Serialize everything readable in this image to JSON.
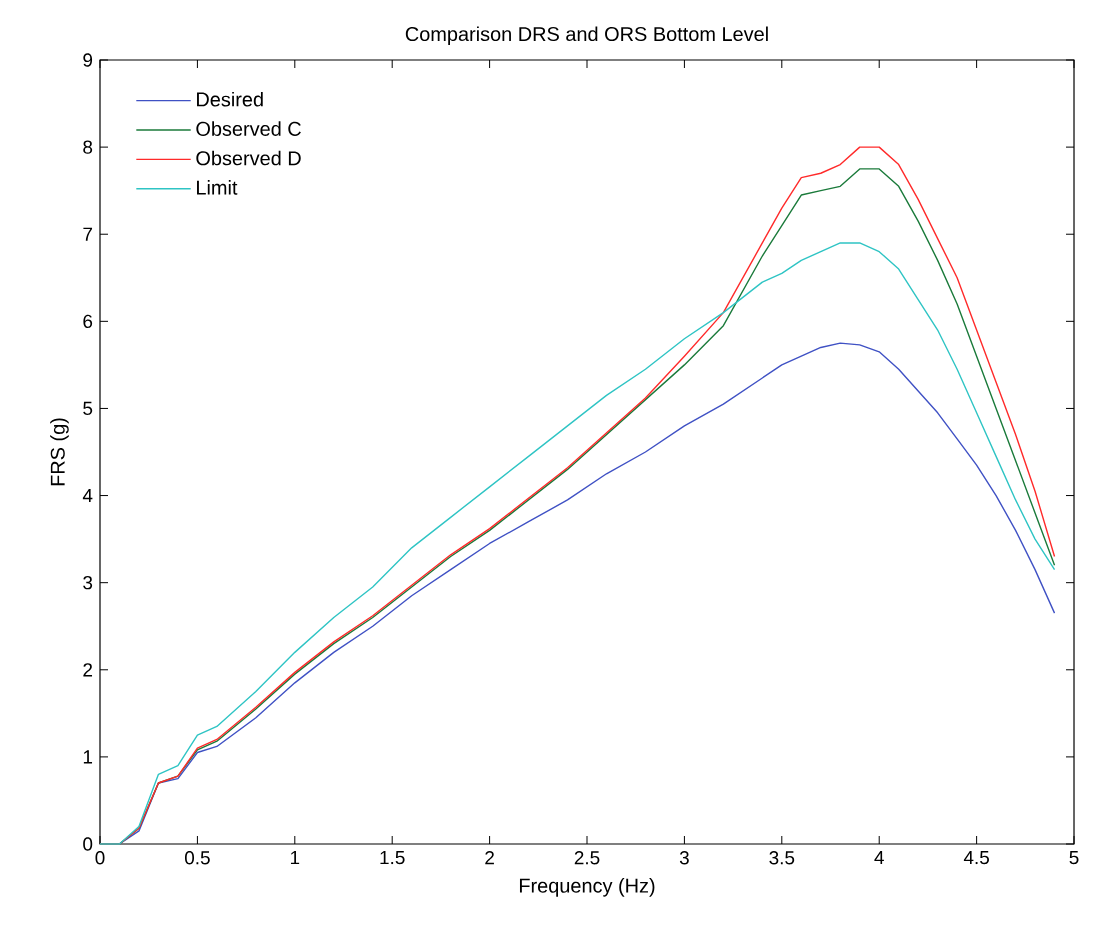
{
  "chart_data": {
    "type": "line",
    "title": "Comparison DRS and ORS Bottom Level",
    "xlabel": "Frequency (Hz)",
    "ylabel": "FRS (g)",
    "x": [
      0,
      0.1,
      0.2,
      0.3,
      0.4,
      0.5,
      0.6,
      0.8,
      1.0,
      1.2,
      1.4,
      1.6,
      1.8,
      2.0,
      2.2,
      2.4,
      2.6,
      2.8,
      3.0,
      3.2,
      3.4,
      3.5,
      3.6,
      3.7,
      3.8,
      3.9,
      4.0,
      4.1,
      4.2,
      4.3,
      4.4,
      4.5,
      4.6,
      4.7,
      4.8,
      4.9
    ],
    "series": [
      {
        "name": "Desired",
        "color": "#3f51c4",
        "values": [
          0,
          0,
          0.15,
          0.7,
          0.75,
          1.05,
          1.12,
          1.45,
          1.85,
          2.2,
          2.5,
          2.85,
          3.15,
          3.45,
          3.7,
          3.95,
          4.25,
          4.5,
          4.8,
          5.05,
          5.35,
          5.5,
          5.6,
          5.7,
          5.75,
          5.73,
          5.65,
          5.45,
          5.2,
          4.95,
          4.65,
          4.35,
          4.0,
          3.6,
          3.15,
          2.65
        ]
      },
      {
        "name": "Observed C",
        "color": "#1a7a3a",
        "values": [
          0,
          0,
          0.18,
          0.7,
          0.78,
          1.08,
          1.18,
          1.55,
          1.95,
          2.3,
          2.6,
          2.95,
          3.3,
          3.6,
          3.95,
          4.3,
          4.7,
          5.1,
          5.5,
          5.95,
          6.75,
          7.1,
          7.45,
          7.5,
          7.55,
          7.75,
          7.75,
          7.55,
          7.15,
          6.7,
          6.2,
          5.6,
          5.0,
          4.4,
          3.8,
          3.2
        ]
      },
      {
        "name": "Observed D",
        "color": "#ff2a2a",
        "values": [
          0,
          0,
          0.18,
          0.7,
          0.78,
          1.1,
          1.2,
          1.57,
          1.97,
          2.32,
          2.62,
          2.97,
          3.32,
          3.62,
          3.97,
          4.32,
          4.72,
          5.12,
          5.6,
          6.1,
          6.9,
          7.3,
          7.65,
          7.7,
          7.8,
          8.0,
          8.0,
          7.8,
          7.4,
          6.95,
          6.5,
          5.9,
          5.3,
          4.7,
          4.05,
          3.3
        ]
      },
      {
        "name": "Limit",
        "color": "#2ec4c4",
        "values": [
          0,
          0,
          0.2,
          0.8,
          0.9,
          1.25,
          1.35,
          1.75,
          2.2,
          2.6,
          2.95,
          3.4,
          3.75,
          4.1,
          4.45,
          4.8,
          5.15,
          5.45,
          5.8,
          6.1,
          6.45,
          6.55,
          6.7,
          6.8,
          6.9,
          6.9,
          6.8,
          6.6,
          6.25,
          5.9,
          5.45,
          4.95,
          4.45,
          3.95,
          3.5,
          3.15
        ]
      }
    ],
    "xlim": [
      0,
      5
    ],
    "ylim": [
      0,
      9
    ],
    "xticks": [
      0,
      0.5,
      1,
      1.5,
      2,
      2.5,
      3,
      3.5,
      4,
      4.5,
      5
    ],
    "yticks": [
      0,
      1,
      2,
      3,
      4,
      5,
      6,
      7,
      8,
      9
    ],
    "grid": false,
    "legend": "top left",
    "marker": "none",
    "line_style": "solid"
  }
}
